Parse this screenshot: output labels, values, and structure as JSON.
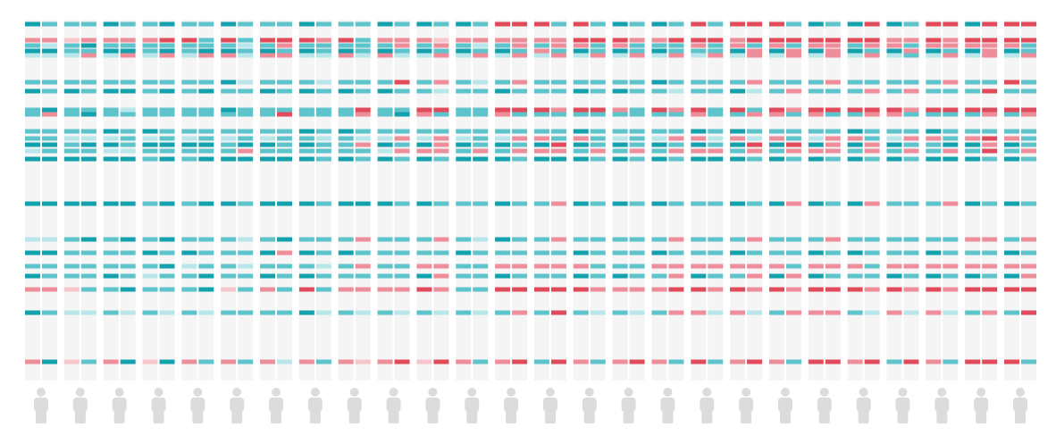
{
  "chart_data": {
    "type": "strip-heatmap",
    "palette": [
      "#13a2ad",
      "#5ec4cb",
      "#b9e6ea",
      "#ededed",
      "#f7c5cc",
      "#ef8e9b",
      "#e04a5a"
    ],
    "strips": [
      [
        -3,
        2,
        -2,
        -3,
        -1,
        -2,
        -3,
        -2,
        -2,
        -2,
        -2,
        -3,
        -1,
        -3,
        -3,
        -1,
        -3,
        -2,
        -3,
        2,
        -3,
        2
      ],
      [
        -2,
        2,
        -1,
        -3,
        -1,
        -2,
        -2,
        -3,
        2,
        -2,
        -2,
        -3,
        -2,
        -3,
        -3,
        -1,
        -3,
        -2,
        -2,
        2,
        -2,
        -3
      ],
      [
        -2,
        1,
        -2,
        -2,
        -1,
        -2,
        -3,
        -2,
        -2,
        -2,
        -1,
        -2,
        -2,
        -3,
        -3,
        -2,
        -2,
        -2,
        -2,
        1,
        -1,
        1
      ],
      [
        -2,
        2,
        -3,
        -2,
        2,
        -2,
        -2,
        -2,
        -3,
        -2,
        -1,
        -3,
        -2,
        -3,
        -3,
        -3,
        -2,
        -2,
        -2,
        -2,
        -1,
        -2
      ],
      [
        -3,
        2,
        -2,
        -3,
        -1,
        -2,
        -3,
        -2,
        -2,
        -3,
        -1,
        -3,
        -1,
        -3,
        -3,
        -2,
        -2,
        -2,
        -3,
        -2,
        -2,
        2
      ],
      [
        -2,
        2,
        -2,
        -3,
        2,
        -2,
        -3,
        -1,
        -2,
        -2,
        -2,
        -2,
        -1,
        -3,
        -3,
        -3,
        -2,
        -2,
        -2,
        -3,
        -1,
        -3
      ],
      [
        -2,
        2,
        -2,
        -2,
        -1,
        -2,
        -2,
        -2,
        -2,
        -3,
        -1,
        -3,
        -2,
        -2,
        -2,
        -2,
        -3,
        -2,
        -1,
        -2,
        -2,
        1
      ],
      [
        -3,
        3,
        -2,
        -3,
        2,
        -2,
        -3,
        -2,
        -2,
        -2,
        -2,
        -3,
        -2,
        -3,
        -3,
        -3,
        -2,
        -3,
        -2,
        -2,
        -1,
        -3
      ],
      [
        -2,
        3,
        -2,
        -2,
        -1,
        -2,
        -2,
        -2,
        -2,
        -2,
        -1,
        -3,
        -2,
        -2,
        -2,
        -2,
        -3,
        -1,
        -2,
        -2,
        -2,
        2
      ],
      [
        -2,
        -2,
        -2,
        -3,
        2,
        -2,
        -3,
        -2,
        -2,
        -2,
        -2,
        -3,
        -2,
        -3,
        -3,
        -2,
        -2,
        -2,
        -3,
        -3,
        -1,
        -2
      ],
      [
        -3,
        3,
        -2,
        -3,
        2,
        -3,
        -2,
        -3,
        -2,
        -2,
        -1,
        -2,
        -2,
        -3,
        -3,
        -2,
        -2,
        -2,
        -2,
        1,
        -2,
        2
      ],
      [
        -2,
        -2,
        -1,
        -2,
        -1,
        -1,
        -2,
        -2,
        -2,
        -2,
        -2,
        -3,
        2,
        -3,
        -2,
        -1,
        -2,
        -1,
        -2,
        -2,
        -2,
        -2
      ],
      [
        -2,
        3,
        -2,
        -3,
        2,
        -2,
        -3,
        -2,
        -2,
        -2,
        -1,
        -3,
        -2,
        -3,
        -3,
        -2,
        -3,
        -2,
        -3,
        2,
        -2,
        2
      ],
      [
        -2,
        3,
        2,
        -2,
        2,
        -2,
        -2,
        -2,
        3,
        -2,
        -2,
        -2,
        -2,
        -3,
        -3,
        -3,
        2,
        -2,
        -2,
        -2,
        -2,
        -1
      ],
      [
        -3,
        3,
        -2,
        -3,
        -1,
        -2,
        -3,
        -2,
        -2,
        -3,
        -2,
        -3,
        -2,
        -3,
        -3,
        -2,
        -3,
        -2,
        -3,
        3,
        -3,
        2
      ],
      [
        -2,
        2,
        -2,
        -2,
        -1,
        -1,
        -2,
        -2,
        -2,
        -2,
        -1,
        -2,
        -2,
        -2,
        -2,
        -2,
        -2,
        -1,
        -2,
        -2,
        -1,
        -2
      ],
      [
        -2,
        3,
        -2,
        -3,
        2,
        -2,
        -3,
        -2,
        -2,
        -3,
        -2,
        -2,
        -2,
        -3,
        -3,
        -2,
        -3,
        -2,
        -2,
        2,
        -2,
        2
      ],
      [
        -2,
        -2,
        -2,
        -2,
        -1,
        -2,
        -2,
        3,
        2,
        -2,
        -1,
        2,
        -2,
        -2,
        -3,
        2,
        -2,
        2,
        -2,
        2,
        -1,
        1
      ],
      [
        -3,
        2,
        -2,
        -3,
        2,
        -2,
        -3,
        -2,
        -2,
        -2,
        -1,
        -3,
        -1,
        -3,
        -3,
        -2,
        -2,
        -2,
        -2,
        2,
        -2,
        2
      ],
      [
        -2,
        2,
        2,
        -2,
        -1,
        3,
        -2,
        -2,
        -3,
        -2,
        2,
        -2,
        2,
        -2,
        -2,
        -2,
        -2,
        -2,
        -2,
        2,
        -1,
        3
      ],
      [
        -3,
        2,
        -2,
        -3,
        -1,
        -2,
        -2,
        3,
        2,
        -2,
        -1,
        -3,
        2,
        -3,
        -3,
        -2,
        -2,
        2,
        -3,
        3,
        -2,
        1
      ],
      [
        -2,
        1,
        2,
        -2,
        2,
        2,
        -1,
        3,
        -2,
        -2,
        2,
        2,
        2,
        -2,
        -2,
        2,
        -2,
        2,
        2,
        2,
        -1,
        3
      ],
      [
        -3,
        2,
        -2,
        -3,
        -1,
        -2,
        -2,
        -2,
        -2,
        -2,
        -1,
        -3,
        -2,
        -3,
        -2,
        -2,
        -3,
        -2,
        -2,
        -2,
        -2,
        2
      ],
      [
        -2,
        2,
        -1,
        -2,
        2,
        -1,
        -2,
        -2,
        -2,
        -2,
        -2,
        -2,
        2,
        -3,
        -2,
        -1,
        -2,
        -2,
        -2,
        -2,
        -1,
        -2
      ],
      [
        3,
        2,
        -2,
        -3,
        -1,
        -2,
        -3,
        3,
        2,
        -2,
        -1,
        -3,
        -2,
        -3,
        -3,
        -3,
        -2,
        2,
        -3,
        3,
        -2,
        2
      ],
      [
        3,
        2,
        2,
        -2,
        2,
        2,
        -2,
        3,
        -2,
        -2,
        2,
        -2,
        2,
        -2,
        -2,
        -2,
        -2,
        2,
        -2,
        3,
        2,
        3
      ],
      [
        3,
        2,
        -2,
        2,
        -1,
        -2,
        -2,
        3,
        -2,
        -2,
        2,
        -3,
        2,
        -3,
        -2,
        -2,
        -2,
        2,
        -2,
        3,
        -2,
        -2
      ],
      [
        -2,
        2,
        2,
        -2,
        2,
        -2,
        -2,
        2,
        -2,
        -2,
        -2,
        3,
        2,
        -3,
        2,
        2,
        -2,
        2,
        -2,
        3,
        3,
        3
      ],
      [
        3,
        3,
        2,
        -3,
        -1,
        -2,
        -3,
        3,
        -2,
        -3,
        2,
        -3,
        -2,
        -3,
        -3,
        -2,
        -3,
        2,
        -3,
        3,
        -2,
        2
      ],
      [
        -2,
        3,
        -2,
        -2,
        2,
        -2,
        -2,
        3,
        -2,
        -2,
        -2,
        -2,
        2,
        -2,
        -2,
        -2,
        -2,
        -2,
        -2,
        2,
        -1,
        -2
      ],
      [
        -3,
        3,
        2,
        -3,
        -1,
        -2,
        -3,
        2,
        -2,
        -2,
        -1,
        -3,
        -2,
        -3,
        -3,
        -2,
        -2,
        -2,
        -3,
        2,
        -2,
        2
      ],
      [
        -2,
        2,
        -2,
        -2,
        2,
        -2,
        -2,
        -2,
        -2,
        -2,
        -2,
        -2,
        2,
        -2,
        -2,
        -2,
        -2,
        -2,
        -2,
        2,
        -1,
        3
      ],
      [
        -3,
        2,
        -2,
        -3,
        -1,
        -3,
        -2,
        3,
        -2,
        -2,
        -1,
        -3,
        -2,
        -3,
        -3,
        -2,
        -3,
        2,
        -2,
        2,
        -2,
        2
      ],
      [
        -2,
        3,
        -2,
        -2,
        2,
        -2,
        -1,
        2,
        -2,
        -2,
        2,
        -2,
        2,
        -2,
        -2,
        2,
        -2,
        2,
        2,
        3,
        2,
        -2
      ],
      [
        3,
        3,
        2,
        -2,
        -1,
        -2,
        -2,
        3,
        2,
        -3,
        2,
        -3,
        2,
        -3,
        -2,
        -2,
        -2,
        2,
        -3,
        3,
        2,
        3
      ],
      [
        -2,
        3,
        -2,
        -2,
        2,
        -2,
        -2,
        -2,
        -2,
        -2,
        -1,
        -2,
        2,
        -3,
        -2,
        -2,
        -2,
        2,
        -2,
        2,
        -1,
        -2
      ],
      [
        3,
        2,
        2,
        -3,
        -1,
        -2,
        -3,
        3,
        -2,
        -3,
        2,
        -3,
        -2,
        -3,
        -3,
        -2,
        -3,
        2,
        -2,
        3,
        2,
        2
      ],
      [
        3,
        3,
        -2,
        2,
        2,
        2,
        -1,
        -2,
        2,
        -2,
        -1,
        3,
        2,
        -2,
        -2,
        2,
        -2,
        2,
        2,
        2,
        -1,
        3
      ],
      [
        3,
        3,
        2,
        -3,
        -1,
        -2,
        -2,
        3,
        2,
        -2,
        2,
        -3,
        -2,
        -3,
        -3,
        -2,
        -2,
        2,
        -3,
        3,
        -2,
        2
      ],
      [
        -2,
        3,
        -2,
        2,
        2,
        -2,
        2,
        2,
        -2,
        -2,
        -2,
        3,
        2,
        -2,
        2,
        -2,
        -2,
        -2,
        2,
        2,
        2,
        -2
      ],
      [
        -3,
        3,
        2,
        -3,
        -1,
        -2,
        -2,
        3,
        2,
        -2,
        -1,
        -3,
        2,
        -3,
        -3,
        -2,
        -3,
        2,
        -3,
        3,
        2,
        3
      ],
      [
        -2,
        3,
        2,
        2,
        2,
        2,
        -2,
        3,
        -2,
        -2,
        2,
        2,
        2,
        -2,
        -2,
        2,
        -2,
        2,
        -2,
        3,
        2,
        3
      ],
      [
        -3,
        3,
        -2,
        -3,
        -1,
        -2,
        -2,
        3,
        -2,
        -3,
        2,
        -3,
        -2,
        -3,
        -3,
        -2,
        -3,
        2,
        -2,
        3,
        -2,
        2
      ],
      [
        3,
        3,
        2,
        -2,
        2,
        -2,
        2,
        3,
        2,
        -2,
        -2,
        2,
        2,
        -2,
        2,
        -2,
        -2,
        -2,
        -2,
        2,
        -1,
        3
      ],
      [
        -3,
        2,
        2,
        -3,
        -1,
        -2,
        -2,
        3,
        2,
        -2,
        -1,
        -3,
        -2,
        -3,
        -2,
        -2,
        -2,
        2,
        -3,
        3,
        2,
        -2
      ],
      [
        -2,
        2,
        -2,
        2,
        -2,
        -2,
        2,
        2,
        -2,
        -2,
        2,
        -2,
        2,
        -2,
        -2,
        -2,
        -2,
        2,
        -2,
        2,
        -1,
        3
      ],
      [
        3,
        3,
        2,
        -3,
        -1,
        -2,
        -2,
        3,
        -2,
        -3,
        2,
        -2,
        -2,
        -3,
        -2,
        -2,
        -3,
        2,
        -3,
        3,
        2,
        2
      ],
      [
        3,
        2,
        2,
        -2,
        2,
        2,
        -2,
        3,
        -2,
        -2,
        -2,
        -3,
        2,
        -3,
        2,
        -2,
        -2,
        2,
        -2,
        2,
        -1,
        -2
      ],
      [
        -3,
        3,
        2,
        -3,
        -1,
        -2,
        -2,
        3,
        -2,
        -2,
        2,
        -3,
        -2,
        -3,
        -3,
        2,
        -2,
        2,
        -3,
        3,
        -2,
        3
      ],
      [
        3,
        3,
        2,
        2,
        2,
        -2,
        3,
        3,
        2,
        -2,
        3,
        2,
        3,
        -2,
        -2,
        2,
        -2,
        2,
        -2,
        3,
        2,
        3
      ],
      [
        3,
        3,
        2,
        -3,
        -1,
        3,
        -2,
        3,
        -2,
        -2,
        2,
        -3,
        -2,
        -3,
        -3,
        -2,
        -3,
        2,
        -3,
        3,
        -2,
        3
      ],
      [
        3,
        3,
        -2,
        -2,
        2,
        -2,
        -2,
        3,
        2,
        -2,
        -2,
        -2,
        2,
        -2,
        -2,
        2,
        -2,
        2,
        2,
        3,
        3,
        -2
      ]
    ]
  }
}
